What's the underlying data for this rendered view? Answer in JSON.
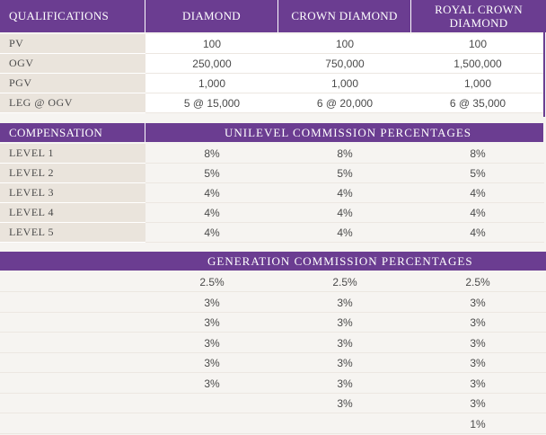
{
  "qualifications": {
    "header": [
      "QUALIFICATIONS",
      "DIAMOND",
      "CROWN DIAMOND",
      "ROYAL CROWN DIAMOND"
    ],
    "rows": [
      {
        "label": "PV",
        "values": [
          "100",
          "100",
          "100"
        ]
      },
      {
        "label": "OGV",
        "values": [
          "250,000",
          "750,000",
          "1,500,000"
        ]
      },
      {
        "label": "PGV",
        "values": [
          "1,000",
          "1,000",
          "1,000"
        ]
      },
      {
        "label": "LEG @ OGV",
        "values": [
          "5 @ 15,000",
          "6 @ 20,000",
          "6 @ 35,000"
        ]
      }
    ]
  },
  "unilevel": {
    "left_header": "COMPENSATION",
    "title": "UNILEVEL COMMISSION PERCENTAGES",
    "rows": [
      {
        "label": "LEVEL 1",
        "values": [
          "8%",
          "8%",
          "8%"
        ]
      },
      {
        "label": "LEVEL 2",
        "values": [
          "5%",
          "5%",
          "5%"
        ]
      },
      {
        "label": "LEVEL 3",
        "values": [
          "4%",
          "4%",
          "4%"
        ]
      },
      {
        "label": "LEVEL 4",
        "values": [
          "4%",
          "4%",
          "4%"
        ]
      },
      {
        "label": "LEVEL 5",
        "values": [
          "4%",
          "4%",
          "4%"
        ]
      }
    ]
  },
  "generation": {
    "title": "GENERATION COMMISSION PERCENTAGES",
    "rows": [
      [
        "2.5%",
        "2.5%",
        "2.5%"
      ],
      [
        "3%",
        "3%",
        "3%"
      ],
      [
        "3%",
        "3%",
        "3%"
      ],
      [
        "3%",
        "3%",
        "3%"
      ],
      [
        "3%",
        "3%",
        "3%"
      ],
      [
        "3%",
        "3%",
        "3%"
      ],
      [
        "",
        "3%",
        "3%"
      ],
      [
        "",
        "",
        "1%"
      ]
    ]
  }
}
